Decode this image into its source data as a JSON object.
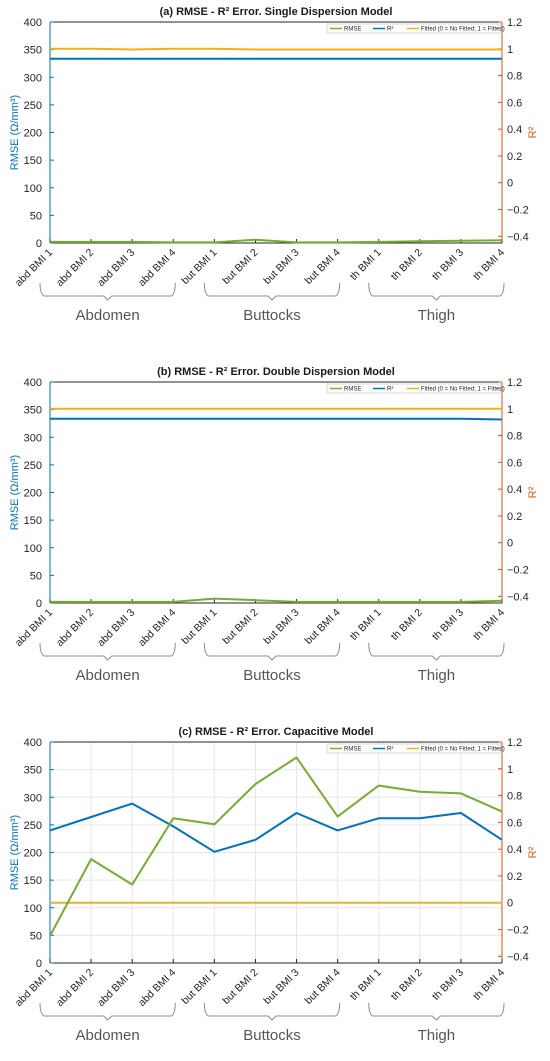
{
  "colors": {
    "rmse": "#77AC30",
    "r2": "#0072BD",
    "fitted": "#EDB120",
    "left_axis": "#0072BD",
    "right_axis": "#D95319",
    "grid": "#e6e6e6",
    "text": "#262626",
    "brace": "#8c8c8c"
  },
  "chart_data": [
    {
      "type": "line",
      "title": "(a) RMSE - R² Error. Single Dispersion Model",
      "ylabel": "RMSE (Ω/mm³)",
      "y2label": "R²",
      "ylim": [
        0,
        400
      ],
      "y2lim": [
        -0.45,
        1.2
      ],
      "yticks": [
        "0",
        "50",
        "100",
        "150",
        "200",
        "250",
        "300",
        "350",
        "400"
      ],
      "y2ticks": [
        "-0.4",
        "-0.2",
        "0",
        "0.2",
        "0.4",
        "0.6",
        "0.8",
        "1",
        "1.2"
      ],
      "grid": false,
      "legend": [
        "RMSE",
        "R²",
        "Fitted (0 = No Fitted; 1 = Fitted)"
      ],
      "legend_position": "top-right",
      "categories": [
        "abd BMI 1",
        "abd BMI 2",
        "abd BMI 3",
        "abd BMI 4",
        "but BMI 1",
        "but BMI 2",
        "but BMI 3",
        "but BMI 4",
        "th BMI 1",
        "th BMI 2",
        "th BMI 3",
        "th BMI 4"
      ],
      "groups": [
        "Abdomen",
        "Buttocks",
        "Thigh"
      ],
      "series": [
        {
          "name": "RMSE",
          "axis": "left",
          "values": [
            2,
            2,
            2,
            1,
            1,
            6,
            1,
            1,
            2,
            3,
            4,
            5
          ]
        },
        {
          "name": "R²",
          "axis": "right",
          "values": [
            0.925,
            0.925,
            0.925,
            0.925,
            0.925,
            0.925,
            0.925,
            0.925,
            0.925,
            0.925,
            0.925,
            0.925
          ]
        },
        {
          "name": "Fitted (0 = No Fitted; 1 = Fitted)",
          "axis": "right",
          "values": [
            1,
            1,
            0.995,
            1,
            1,
            0.995,
            0.995,
            0.995,
            0.995,
            0.995,
            0.995,
            0.995
          ]
        }
      ]
    },
    {
      "type": "line",
      "title": "(b) RMSE - R² Error. Double Dispersion Model",
      "ylabel": "RMSE (Ω/mm³)",
      "y2label": "R²",
      "ylim": [
        0,
        400
      ],
      "y2lim": [
        -0.45,
        1.2
      ],
      "yticks": [
        "0",
        "50",
        "100",
        "150",
        "200",
        "250",
        "300",
        "350",
        "400"
      ],
      "y2ticks": [
        "-0.4",
        "-0.2",
        "0",
        "0.2",
        "0.4",
        "0.6",
        "0.8",
        "1",
        "1.2"
      ],
      "grid": false,
      "legend": [
        "RMSE",
        "R²",
        "Fitted (0 = No Fitted; 1 = Fitted)"
      ],
      "legend_position": "top-right",
      "categories": [
        "abd BMI 1",
        "abd BMI 2",
        "abd BMI 3",
        "abd BMI 4",
        "but BMI 1",
        "but BMI 2",
        "but BMI 3",
        "but BMI 4",
        "th BMI 1",
        "th BMI 2",
        "th BMI 3",
        "th BMI 4"
      ],
      "groups": [
        "Abdomen",
        "Buttocks",
        "Thigh"
      ],
      "series": [
        {
          "name": "RMSE",
          "axis": "left",
          "values": [
            2,
            2,
            2,
            2,
            8,
            5,
            2,
            2,
            2,
            2,
            2,
            4
          ]
        },
        {
          "name": "R²",
          "axis": "right",
          "values": [
            0.925,
            0.925,
            0.925,
            0.925,
            0.925,
            0.925,
            0.925,
            0.925,
            0.925,
            0.925,
            0.925,
            0.92
          ]
        },
        {
          "name": "Fitted (0 = No Fitted; 1 = Fitted)",
          "axis": "right",
          "values": [
            1,
            1,
            1,
            1,
            1,
            1,
            1,
            1,
            1,
            1,
            1,
            1
          ]
        }
      ]
    },
    {
      "type": "line",
      "title": "(c) RMSE - R² Error. Capacitive Model",
      "ylabel": "RMSE (Ω/mm³)",
      "y2label": "R²",
      "ylim": [
        0,
        400
      ],
      "y2lim": [
        -0.45,
        1.2
      ],
      "yticks": [
        "0",
        "50",
        "100",
        "150",
        "200",
        "250",
        "300",
        "350",
        "400"
      ],
      "y2ticks": [
        "-0.4",
        "-0.2",
        "0",
        "0.2",
        "0.4",
        "0.6",
        "0.8",
        "1",
        "1.2"
      ],
      "grid": true,
      "legend": [
        "RMSE",
        "R²",
        "Fitted (0 = No Fitted; 1 = Fitted)"
      ],
      "legend_position": "top-right",
      "categories": [
        "abd BMI 1",
        "abd BMI 2",
        "abd BMI 3",
        "abd BMI 4",
        "but BMI 1",
        "but BMI 2",
        "but BMI 3",
        "but BMI 4",
        "th BMI 1",
        "th BMI 2",
        "th BMI 3",
        "th BMI 4"
      ],
      "groups": [
        "Abdomen",
        "Buttocks",
        "Thigh"
      ],
      "series": [
        {
          "name": "RMSE",
          "axis": "left",
          "values": [
            49,
            188,
            142,
            262,
            251,
            324,
            372,
            265,
            321,
            310,
            307,
            274
          ]
        },
        {
          "name": "R²",
          "axis": "right",
          "values": [
            0.54,
            0.64,
            0.74,
            0.57,
            0.38,
            0.47,
            0.67,
            0.54,
            0.63,
            0.63,
            0.67,
            0.47
          ]
        },
        {
          "name": "Fitted (0 = No Fitted; 1 = Fitted)",
          "axis": "right",
          "values": [
            0,
            0,
            0,
            0,
            0,
            0,
            0,
            0,
            0,
            0,
            0,
            0
          ]
        }
      ]
    }
  ]
}
